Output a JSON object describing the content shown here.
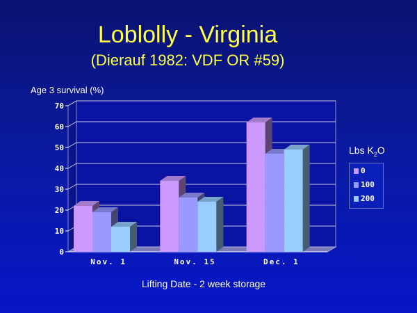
{
  "chart_data": {
    "type": "bar",
    "title": "Loblolly - Virginia",
    "subtitle": "(Dierauf 1982: VDF OR #59)",
    "ylabel": "Age 3 survival (%)",
    "xlabel": "Lifting Date - 2 week storage",
    "categories": [
      "Nov. 1",
      "Nov. 15",
      "Dec. 1"
    ],
    "series": [
      {
        "name": "0",
        "values": [
          22,
          34,
          62
        ],
        "color": "#cc99ff"
      },
      {
        "name": "100",
        "values": [
          19,
          26,
          47
        ],
        "color": "#9999ff"
      },
      {
        "name": "200",
        "values": [
          12,
          24,
          49
        ],
        "color": "#99ccff"
      }
    ],
    "ylim": [
      0,
      70
    ],
    "yticks": [
      0,
      10,
      20,
      30,
      40,
      50,
      60,
      70
    ],
    "grid": true,
    "legend_title": {
      "text": "Lbs K",
      "sub": "2",
      "after": "O"
    },
    "legend_position": "right"
  }
}
